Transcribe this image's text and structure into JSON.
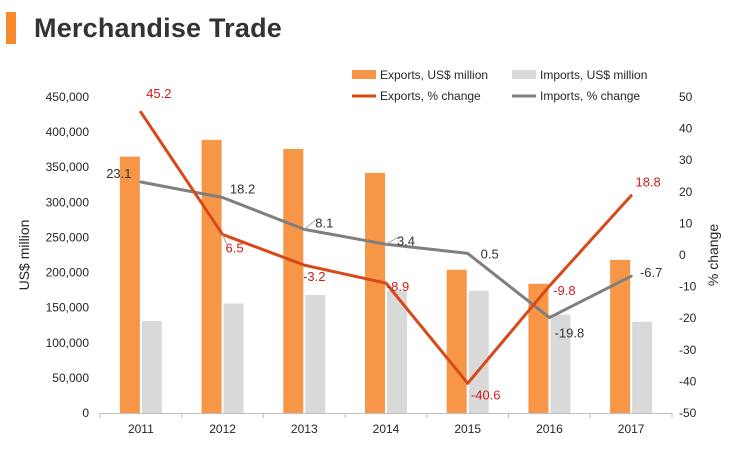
{
  "header": {
    "title": "Merchandise Trade"
  },
  "colors": {
    "accent": "#f5892c",
    "exports_bar": "#f79646",
    "imports_bar": "#d9d9d9",
    "exports_line": "#d8491a",
    "imports_line": "#7f7f7f",
    "exports_label": "#d01c1c",
    "imports_label": "#333333",
    "axis_text": "#262626"
  },
  "chart_data": {
    "type": "bar",
    "categories": [
      "2011",
      "2012",
      "2013",
      "2014",
      "2015",
      "2016",
      "2017"
    ],
    "ylabel": "US$ million",
    "y2label": "% change",
    "ylim": [
      0,
      450000
    ],
    "y2lim": [
      -50,
      50
    ],
    "y_ticks": [
      "0",
      "50,000",
      "100,000",
      "150,000",
      "200,000",
      "250,000",
      "300,000",
      "350,000",
      "400,000",
      "450,000"
    ],
    "y2_ticks": [
      "-50",
      "-40",
      "-30",
      "-20",
      "-10",
      "0",
      "10",
      "20",
      "30",
      "40",
      "50"
    ],
    "legend_position": "top-right",
    "series": [
      {
        "name": "Exports, US$ million",
        "type": "bar",
        "axis": "left",
        "values": [
          365000,
          389000,
          376000,
          342000,
          204000,
          184000,
          218000
        ]
      },
      {
        "name": "Imports, US$ million",
        "type": "bar",
        "axis": "left",
        "values": [
          131000,
          156000,
          168000,
          174000,
          174000,
          140000,
          130000
        ]
      },
      {
        "name": "Exports, % change",
        "type": "line",
        "axis": "right",
        "values": [
          45.2,
          6.5,
          -3.2,
          -8.9,
          -40.6,
          -9.8,
          18.8
        ],
        "labels": [
          "45.2",
          "6.5",
          "-3.2",
          "-8.9",
          "-40.6",
          "-9.8",
          "18.8"
        ]
      },
      {
        "name": "Imports, % change",
        "type": "line",
        "axis": "right",
        "values": [
          23.1,
          18.2,
          8.1,
          3.4,
          0.5,
          -19.8,
          -6.7
        ],
        "labels": [
          "23.1",
          "18.2",
          "8.1",
          "3.4",
          "0.5",
          "-19.8",
          "-6.7"
        ]
      }
    ]
  }
}
